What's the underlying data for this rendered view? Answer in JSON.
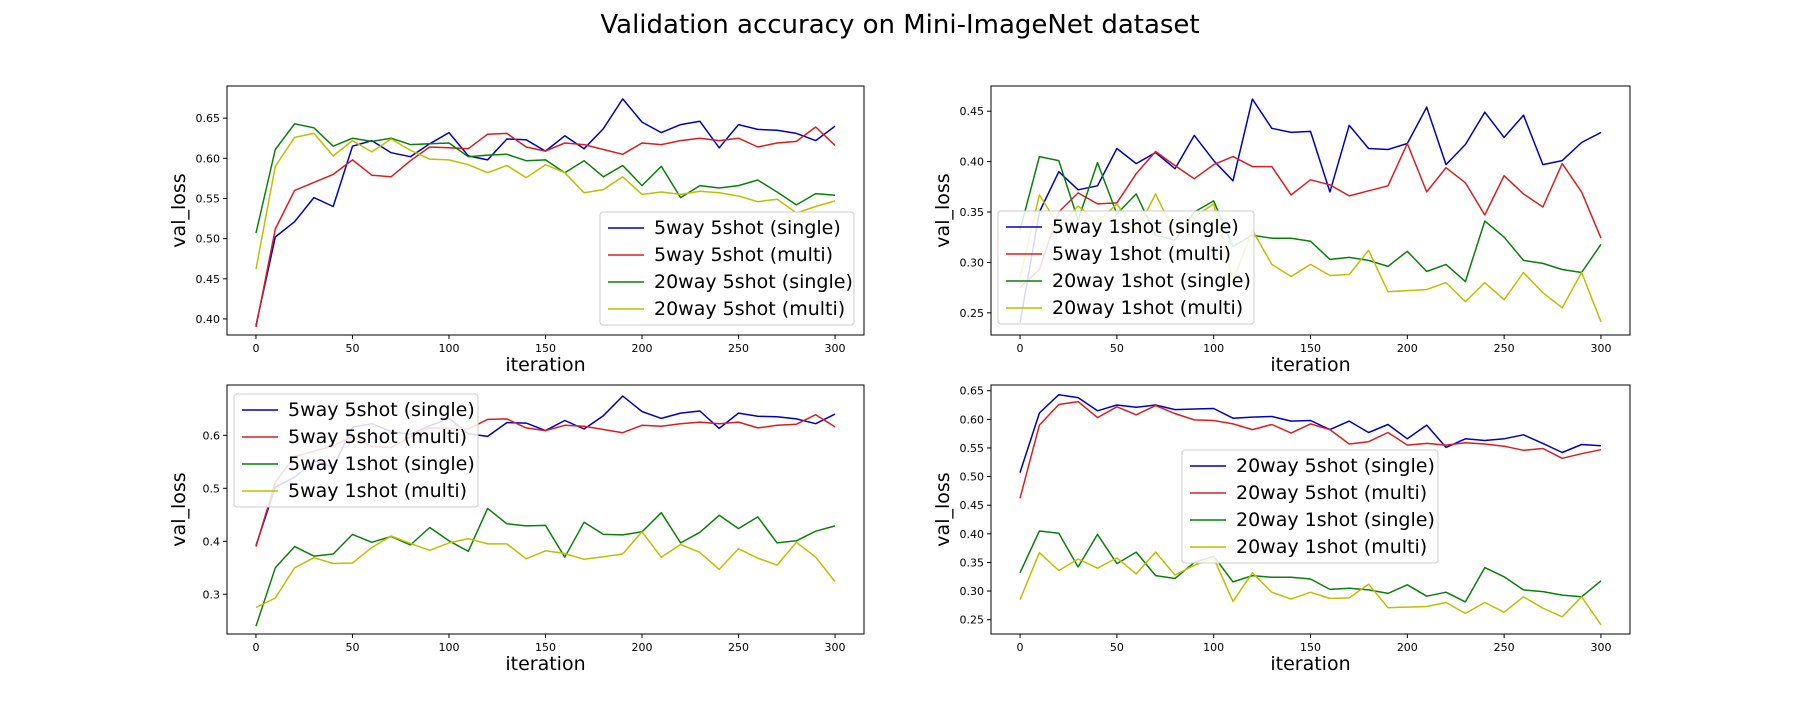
{
  "chart_data": {
    "title": "Validation accuracy on Mini-ImageNet dataset",
    "iteration": [
      0,
      10,
      20,
      30,
      40,
      50,
      60,
      70,
      80,
      90,
      100,
      110,
      120,
      130,
      140,
      150,
      160,
      170,
      180,
      190,
      200,
      210,
      220,
      230,
      240,
      250,
      260,
      270,
      280,
      290,
      300
    ],
    "subplots": [
      {
        "type": "line",
        "xlabel": "iteration",
        "ylabel": "val_loss",
        "xlim": [
          -15,
          315
        ],
        "ylim": [
          0.38,
          0.69
        ],
        "xticks": [
          0,
          50,
          100,
          150,
          200,
          250,
          300
        ],
        "yticks": [
          0.4,
          0.45,
          0.5,
          0.55,
          0.6,
          0.65
        ],
        "ytick_labels": [
          "0.40",
          "0.45",
          "0.50",
          "0.55",
          "0.60",
          "0.65"
        ],
        "legend": "lower-right",
        "series": [
          {
            "name": "5way 5shot (single)",
            "color": "#0000bf",
            "values": [
              0.392,
              0.502,
              0.521,
              0.551,
              0.54,
              0.615,
              0.622,
              0.607,
              0.602,
              0.618,
              0.632,
              0.603,
              0.598,
              0.624,
              0.623,
              0.609,
              0.628,
              0.612,
              0.637,
              0.674,
              0.645,
              0.632,
              0.642,
              0.646,
              0.613,
              0.642,
              0.636,
              0.635,
              0.631,
              0.622,
              0.64
            ]
          },
          {
            "name": "5way 5shot (multi)",
            "color": "#d62020",
            "values": [
              0.39,
              0.512,
              0.56,
              0.57,
              0.58,
              0.598,
              0.579,
              0.577,
              0.597,
              0.614,
              0.613,
              0.612,
              0.63,
              0.631,
              0.614,
              0.609,
              0.619,
              0.617,
              0.611,
              0.605,
              0.619,
              0.617,
              0.622,
              0.625,
              0.622,
              0.625,
              0.614,
              0.619,
              0.621,
              0.639,
              0.616
            ]
          },
          {
            "name": "20way 5shot (single)",
            "color": "#0a800a",
            "values": [
              0.507,
              0.611,
              0.643,
              0.638,
              0.615,
              0.625,
              0.621,
              0.625,
              0.617,
              0.618,
              0.619,
              0.602,
              0.604,
              0.605,
              0.597,
              0.598,
              0.582,
              0.597,
              0.577,
              0.591,
              0.566,
              0.59,
              0.551,
              0.566,
              0.563,
              0.566,
              0.573,
              0.558,
              0.542,
              0.556,
              0.554
            ]
          },
          {
            "name": "20way 5shot (multi)",
            "color": "#bfbf00",
            "values": [
              0.462,
              0.59,
              0.626,
              0.631,
              0.603,
              0.622,
              0.608,
              0.624,
              0.61,
              0.599,
              0.598,
              0.592,
              0.582,
              0.591,
              0.576,
              0.592,
              0.582,
              0.557,
              0.561,
              0.577,
              0.555,
              0.558,
              0.555,
              0.559,
              0.557,
              0.553,
              0.546,
              0.549,
              0.532,
              0.54,
              0.547
            ]
          }
        ]
      },
      {
        "type": "line",
        "xlabel": "iteration",
        "ylabel": "val_loss",
        "xlim": [
          -15,
          315
        ],
        "ylim": [
          0.228,
          0.475
        ],
        "xticks": [
          0,
          50,
          100,
          150,
          200,
          250,
          300
        ],
        "yticks": [
          0.25,
          0.3,
          0.35,
          0.4,
          0.45
        ],
        "ytick_labels": [
          "0.25",
          "0.30",
          "0.35",
          "0.40",
          "0.45"
        ],
        "legend": "lower-left",
        "series": [
          {
            "name": "5way 1shot (single)",
            "color": "#0000bf",
            "values": [
              0.24,
              0.35,
              0.39,
              0.372,
              0.376,
              0.413,
              0.398,
              0.409,
              0.393,
              0.426,
              0.401,
              0.381,
              0.462,
              0.433,
              0.429,
              0.43,
              0.37,
              0.436,
              0.413,
              0.412,
              0.418,
              0.454,
              0.397,
              0.417,
              0.449,
              0.424,
              0.446,
              0.397,
              0.401,
              0.419,
              0.429
            ]
          },
          {
            "name": "5way 1shot (multi)",
            "color": "#d62020",
            "values": [
              0.275,
              0.293,
              0.35,
              0.369,
              0.358,
              0.359,
              0.388,
              0.41,
              0.396,
              0.383,
              0.397,
              0.405,
              0.395,
              0.395,
              0.367,
              0.382,
              0.377,
              0.366,
              0.371,
              0.376,
              0.418,
              0.37,
              0.394,
              0.379,
              0.347,
              0.386,
              0.368,
              0.355,
              0.398,
              0.37,
              0.324
            ]
          },
          {
            "name": "20way 1shot (single)",
            "color": "#0a800a",
            "values": [
              0.332,
              0.405,
              0.401,
              0.342,
              0.399,
              0.348,
              0.368,
              0.327,
              0.322,
              0.35,
              0.361,
              0.316,
              0.327,
              0.324,
              0.324,
              0.321,
              0.303,
              0.305,
              0.302,
              0.296,
              0.311,
              0.291,
              0.298,
              0.281,
              0.341,
              0.325,
              0.302,
              0.299,
              0.293,
              0.29,
              0.318
            ]
          },
          {
            "name": "20way 1shot (multi)",
            "color": "#bfbf00",
            "values": [
              0.285,
              0.367,
              0.336,
              0.356,
              0.34,
              0.358,
              0.33,
              0.368,
              0.328,
              0.345,
              0.358,
              0.282,
              0.332,
              0.298,
              0.286,
              0.298,
              0.287,
              0.288,
              0.312,
              0.271,
              0.272,
              0.273,
              0.28,
              0.261,
              0.28,
              0.263,
              0.29,
              0.27,
              0.255,
              0.29,
              0.241
            ]
          }
        ]
      },
      {
        "type": "line",
        "xlabel": "iteration",
        "ylabel": "val_loss",
        "xlim": [
          -15,
          315
        ],
        "ylim": [
          0.225,
          0.695
        ],
        "xticks": [
          0,
          50,
          100,
          150,
          200,
          250,
          300
        ],
        "yticks": [
          0.3,
          0.4,
          0.5,
          0.6
        ],
        "ytick_labels": [
          "0.3",
          "0.4",
          "0.5",
          "0.6"
        ],
        "legend": "upper-left",
        "series": [
          {
            "name": "5way 5shot (single)",
            "color": "#0000bf",
            "values": [
              0.392,
              0.502,
              0.521,
              0.551,
              0.54,
              0.615,
              0.622,
              0.607,
              0.602,
              0.618,
              0.632,
              0.603,
              0.598,
              0.624,
              0.623,
              0.609,
              0.628,
              0.612,
              0.637,
              0.674,
              0.645,
              0.632,
              0.642,
              0.646,
              0.613,
              0.642,
              0.636,
              0.635,
              0.631,
              0.622,
              0.64
            ]
          },
          {
            "name": "5way 5shot (multi)",
            "color": "#d62020",
            "values": [
              0.39,
              0.512,
              0.56,
              0.57,
              0.58,
              0.598,
              0.579,
              0.577,
              0.597,
              0.614,
              0.613,
              0.612,
              0.63,
              0.631,
              0.614,
              0.609,
              0.619,
              0.617,
              0.611,
              0.605,
              0.619,
              0.617,
              0.622,
              0.625,
              0.622,
              0.625,
              0.614,
              0.619,
              0.621,
              0.639,
              0.616
            ]
          },
          {
            "name": "5way 1shot (single)",
            "color": "#0a800a",
            "values": [
              0.24,
              0.35,
              0.39,
              0.372,
              0.376,
              0.413,
              0.398,
              0.409,
              0.393,
              0.426,
              0.401,
              0.381,
              0.462,
              0.433,
              0.429,
              0.43,
              0.37,
              0.436,
              0.413,
              0.412,
              0.418,
              0.454,
              0.397,
              0.417,
              0.449,
              0.424,
              0.446,
              0.397,
              0.401,
              0.419,
              0.429
            ]
          },
          {
            "name": "5way 1shot (multi)",
            "color": "#bfbf00",
            "values": [
              0.275,
              0.293,
              0.35,
              0.369,
              0.358,
              0.359,
              0.388,
              0.41,
              0.396,
              0.383,
              0.397,
              0.405,
              0.395,
              0.395,
              0.367,
              0.382,
              0.377,
              0.366,
              0.371,
              0.376,
              0.418,
              0.37,
              0.394,
              0.379,
              0.347,
              0.386,
              0.368,
              0.355,
              0.398,
              0.37,
              0.324
            ]
          }
        ]
      },
      {
        "type": "line",
        "xlabel": "iteration",
        "ylabel": "val_loss",
        "xlim": [
          -15,
          315
        ],
        "ylim": [
          0.225,
          0.66
        ],
        "xticks": [
          0,
          50,
          100,
          150,
          200,
          250,
          300
        ],
        "yticks": [
          0.25,
          0.3,
          0.35,
          0.4,
          0.45,
          0.5,
          0.55,
          0.6,
          0.65
        ],
        "ytick_labels": [
          "0.25",
          "0.30",
          "0.35",
          "0.40",
          "0.45",
          "0.50",
          "0.55",
          "0.60",
          "0.65"
        ],
        "legend": "center",
        "series": [
          {
            "name": "20way 5shot (single)",
            "color": "#0000bf",
            "values": [
              0.507,
              0.611,
              0.643,
              0.638,
              0.615,
              0.625,
              0.621,
              0.625,
              0.617,
              0.618,
              0.619,
              0.602,
              0.604,
              0.605,
              0.597,
              0.598,
              0.582,
              0.597,
              0.577,
              0.591,
              0.566,
              0.59,
              0.551,
              0.566,
              0.563,
              0.566,
              0.573,
              0.558,
              0.542,
              0.556,
              0.554
            ]
          },
          {
            "name": "20way 5shot (multi)",
            "color": "#d62020",
            "values": [
              0.462,
              0.59,
              0.626,
              0.631,
              0.603,
              0.622,
              0.608,
              0.624,
              0.61,
              0.599,
              0.598,
              0.592,
              0.582,
              0.591,
              0.576,
              0.592,
              0.582,
              0.557,
              0.561,
              0.577,
              0.555,
              0.558,
              0.555,
              0.559,
              0.557,
              0.553,
              0.546,
              0.549,
              0.532,
              0.54,
              0.547
            ]
          },
          {
            "name": "20way 1shot (single)",
            "color": "#0a800a",
            "values": [
              0.332,
              0.405,
              0.401,
              0.342,
              0.399,
              0.348,
              0.368,
              0.327,
              0.322,
              0.35,
              0.361,
              0.316,
              0.327,
              0.324,
              0.324,
              0.321,
              0.303,
              0.305,
              0.302,
              0.296,
              0.311,
              0.291,
              0.298,
              0.281,
              0.341,
              0.325,
              0.302,
              0.299,
              0.293,
              0.29,
              0.318
            ]
          },
          {
            "name": "20way 1shot (multi)",
            "color": "#bfbf00",
            "values": [
              0.285,
              0.367,
              0.336,
              0.356,
              0.34,
              0.358,
              0.33,
              0.368,
              0.328,
              0.345,
              0.358,
              0.282,
              0.332,
              0.298,
              0.286,
              0.298,
              0.287,
              0.288,
              0.312,
              0.271,
              0.272,
              0.273,
              0.28,
              0.261,
              0.28,
              0.263,
              0.29,
              0.27,
              0.255,
              0.29,
              0.241
            ]
          }
        ]
      }
    ]
  }
}
